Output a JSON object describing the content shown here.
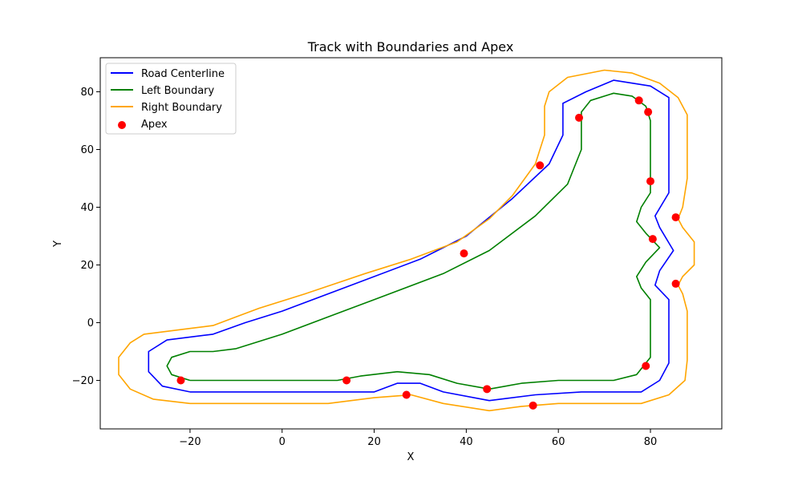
{
  "chart_data": {
    "type": "line",
    "title": "Track with Boundaries and Apex",
    "xlabel": "X",
    "ylabel": "Y",
    "xlim": [
      -39.5,
      95.5
    ],
    "ylim": [
      -36.8,
      91.8
    ],
    "xticks": [
      -20,
      0,
      20,
      40,
      60,
      80
    ],
    "yticks": [
      -20,
      0,
      20,
      40,
      60,
      80
    ],
    "grid": false,
    "legend_position": "top-left",
    "series": [
      {
        "name": "Road Centerline",
        "kind": "line",
        "color": "#0000ff",
        "points": [
          [
            -20,
            -24
          ],
          [
            0,
            -24
          ],
          [
            20,
            -24
          ],
          [
            25,
            -21
          ],
          [
            30,
            -21
          ],
          [
            35,
            -24
          ],
          [
            45,
            -27
          ],
          [
            55,
            -25
          ],
          [
            65,
            -24
          ],
          [
            78,
            -24
          ],
          [
            82,
            -20
          ],
          [
            84,
            -14
          ],
          [
            84,
            8
          ],
          [
            81,
            13
          ],
          [
            82,
            18
          ],
          [
            85,
            25
          ],
          [
            82,
            33
          ],
          [
            81,
            37
          ],
          [
            84,
            45
          ],
          [
            84,
            78
          ],
          [
            80,
            82
          ],
          [
            72,
            84
          ],
          [
            66,
            80
          ],
          [
            61,
            76
          ],
          [
            61,
            65
          ],
          [
            58,
            55
          ],
          [
            50,
            43
          ],
          [
            40,
            30
          ],
          [
            30,
            22
          ],
          [
            15,
            13
          ],
          [
            0,
            4
          ],
          [
            -8,
            0
          ],
          [
            -15,
            -4
          ],
          [
            -25,
            -6
          ],
          [
            -29,
            -10
          ],
          [
            -29,
            -17
          ],
          [
            -26,
            -22
          ],
          [
            -20,
            -24
          ]
        ]
      },
      {
        "name": "Left Boundary",
        "kind": "line",
        "color": "#008000",
        "points": [
          [
            -20,
            -20
          ],
          [
            0,
            -20
          ],
          [
            12,
            -20
          ],
          [
            17,
            -18.5
          ],
          [
            25,
            -17
          ],
          [
            32,
            -18
          ],
          [
            38,
            -21
          ],
          [
            45,
            -23
          ],
          [
            52,
            -21
          ],
          [
            60,
            -20
          ],
          [
            72,
            -20
          ],
          [
            77,
            -18
          ],
          [
            80,
            -12
          ],
          [
            80,
            8
          ],
          [
            78,
            12
          ],
          [
            77,
            16
          ],
          [
            79,
            21
          ],
          [
            82,
            26
          ],
          [
            79,
            31
          ],
          [
            77,
            35
          ],
          [
            78,
            40
          ],
          [
            80,
            45
          ],
          [
            80,
            70
          ],
          [
            79,
            75
          ],
          [
            76,
            78.5
          ],
          [
            72,
            79.5
          ],
          [
            67,
            77
          ],
          [
            65,
            73
          ],
          [
            65,
            60
          ],
          [
            62,
            48
          ],
          [
            55,
            37
          ],
          [
            45,
            25
          ],
          [
            35,
            17
          ],
          [
            20,
            8
          ],
          [
            10,
            2
          ],
          [
            0,
            -4
          ],
          [
            -10,
            -9
          ],
          [
            -15,
            -10
          ],
          [
            -20,
            -10
          ],
          [
            -24,
            -12
          ],
          [
            -25,
            -15
          ],
          [
            -24,
            -18
          ],
          [
            -20,
            -20
          ]
        ]
      },
      {
        "name": "Right Boundary",
        "kind": "line",
        "color": "#ffa500",
        "points": [
          [
            -20,
            -28
          ],
          [
            0,
            -28
          ],
          [
            10,
            -28
          ],
          [
            20,
            -26
          ],
          [
            28,
            -25
          ],
          [
            35,
            -28
          ],
          [
            45,
            -30.5
          ],
          [
            52,
            -29
          ],
          [
            60,
            -28
          ],
          [
            78,
            -28
          ],
          [
            84,
            -25
          ],
          [
            87.5,
            -20
          ],
          [
            88,
            -13
          ],
          [
            88,
            4
          ],
          [
            87,
            10
          ],
          [
            86,
            13
          ],
          [
            87,
            16
          ],
          [
            89.5,
            20
          ],
          [
            89.5,
            28
          ],
          [
            87,
            33
          ],
          [
            86,
            36
          ],
          [
            87,
            40
          ],
          [
            88,
            50
          ],
          [
            88,
            72
          ],
          [
            86,
            78
          ],
          [
            82,
            83
          ],
          [
            76,
            86.5
          ],
          [
            70,
            87.5
          ],
          [
            62,
            85
          ],
          [
            58,
            80
          ],
          [
            57,
            75
          ],
          [
            57,
            65
          ],
          [
            55,
            55
          ],
          [
            50,
            44
          ],
          [
            45,
            36
          ],
          [
            38,
            28
          ],
          [
            28,
            22
          ],
          [
            18,
            17
          ],
          [
            5,
            10
          ],
          [
            -5,
            5
          ],
          [
            -10,
            2
          ],
          [
            -15,
            -1
          ],
          [
            -20,
            -2
          ],
          [
            -30,
            -4
          ],
          [
            -33,
            -7
          ],
          [
            -35.5,
            -12
          ],
          [
            -35.5,
            -18
          ],
          [
            -33,
            -23
          ],
          [
            -28,
            -26.5
          ],
          [
            -20,
            -28
          ]
        ]
      },
      {
        "name": "Apex",
        "kind": "scatter",
        "color": "#ff0000",
        "points": [
          [
            -22,
            -20
          ],
          [
            14,
            -20
          ],
          [
            27,
            -25
          ],
          [
            44.5,
            -23
          ],
          [
            54.5,
            -28.7
          ],
          [
            39.5,
            24
          ],
          [
            56,
            54.5
          ],
          [
            64.5,
            71
          ],
          [
            77.5,
            77
          ],
          [
            79.5,
            73
          ],
          [
            80,
            49
          ],
          [
            80.5,
            29
          ],
          [
            85.5,
            36.5
          ],
          [
            85.5,
            13.5
          ],
          [
            79,
            -15
          ]
        ]
      }
    ]
  }
}
